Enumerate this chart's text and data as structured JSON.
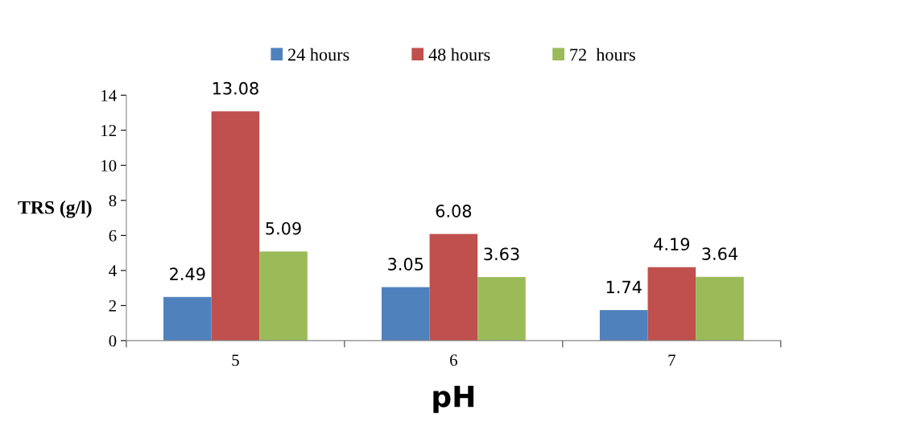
{
  "chart_data": {
    "type": "bar",
    "xlabel": "pH",
    "ylabel": "TRS (g/l)",
    "categories": [
      "5",
      "6",
      "7"
    ],
    "series": [
      {
        "name": "24 hours",
        "color": "#4f81bd",
        "values": [
          2.49,
          3.05,
          1.74
        ]
      },
      {
        "name": "48 hours",
        "color": "#c0504d",
        "values": [
          13.08,
          6.08,
          4.19
        ]
      },
      {
        "name": "72  hours",
        "color": "#9bbb59",
        "values": [
          5.09,
          3.63,
          3.64
        ]
      }
    ],
    "ylim": [
      0,
      14
    ],
    "yticks": [
      0,
      2,
      4,
      6,
      8,
      10,
      12,
      14
    ],
    "data_labels": true,
    "legend": "top",
    "grid": false
  }
}
